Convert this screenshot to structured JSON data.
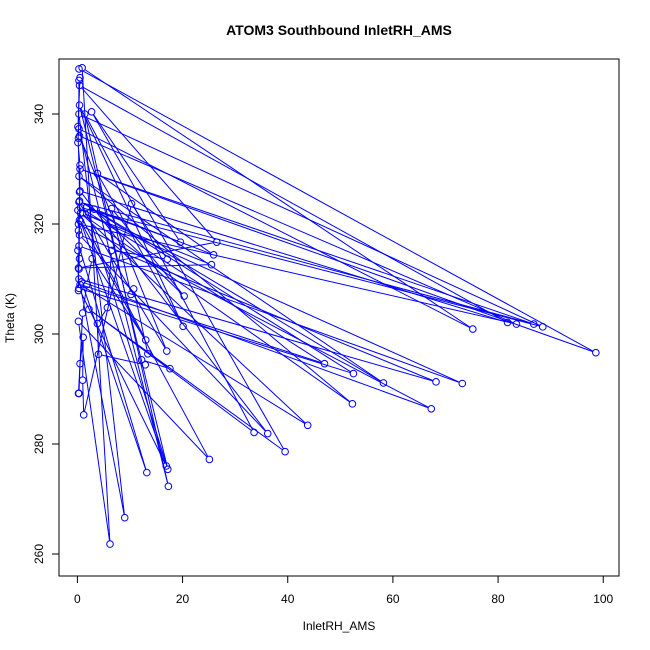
{
  "chart_data": {
    "type": "scatter",
    "title": "ATOM3 Southbound InletRH_AMS",
    "xlabel": "InletRH_AMS",
    "ylabel": "Theta (K)",
    "xlim": [
      -3.5,
      103
    ],
    "ylim": [
      256,
      350
    ],
    "xticks": [
      "0",
      "20",
      "40",
      "60",
      "80",
      "100"
    ],
    "yticks": [
      "260",
      "280",
      "300",
      "320",
      "340"
    ],
    "series": [
      {
        "color": "#0000ff",
        "marker": "open-circle",
        "connected": true,
        "points": [
          [
            0.3,
            348.2
          ],
          [
            98.6,
            296.6
          ],
          [
            0.5,
            330.0
          ],
          [
            86.8,
            301.8
          ],
          [
            0.3,
            324.0
          ],
          [
            17.0,
            296.9
          ],
          [
            0.4,
            336.0
          ],
          [
            83.5,
            301.8
          ],
          [
            0.2,
            320.0
          ],
          [
            67.3,
            286.4
          ],
          [
            0.8,
            309.5
          ],
          [
            13.2,
            274.8
          ],
          [
            0.3,
            316.0
          ],
          [
            73.2,
            291.0
          ],
          [
            1.0,
            322.0
          ],
          [
            25.5,
            312.6
          ],
          [
            0.2,
            312.0
          ],
          [
            26.5,
            316.7
          ],
          [
            0.4,
            345.2
          ],
          [
            81.8,
            302.1
          ],
          [
            0.5,
            326.0
          ],
          [
            36.2,
            281.9
          ],
          [
            0.4,
            318.0
          ],
          [
            68.2,
            291.3
          ],
          [
            0.3,
            310.0
          ],
          [
            9.0,
            266.6
          ],
          [
            0.3,
            340.0
          ],
          [
            88.5,
            301.3
          ],
          [
            0.6,
            323.0
          ],
          [
            47.0,
            294.6
          ],
          [
            0.5,
            309.0
          ],
          [
            43.8,
            283.4
          ],
          [
            0.6,
            322.0
          ],
          [
            52.3,
            287.3
          ],
          [
            0.3,
            328.7
          ],
          [
            58.2,
            291.1
          ],
          [
            0.4,
            324.2
          ],
          [
            52.5,
            292.8
          ],
          [
            0.3,
            308.3
          ],
          [
            16.9,
            276.0
          ],
          [
            0.6,
            320.5
          ],
          [
            25.1,
            277.2
          ],
          [
            0.2,
            302.3
          ],
          [
            6.2,
            261.8
          ],
          [
            0.9,
            348.4
          ],
          [
            75.2,
            300.9
          ],
          [
            0.3,
            337.3
          ],
          [
            17.3,
            272.3
          ],
          [
            1.4,
            340.0
          ],
          [
            33.6,
            282.1
          ],
          [
            2.2,
            304.5
          ],
          [
            39.5,
            278.6
          ],
          [
            2.7,
            340.4
          ],
          [
            19.6,
            316.7
          ],
          [
            1.7,
            323.0
          ],
          [
            17.2,
            275.4
          ],
          [
            0.4,
            341.6
          ],
          [
            20.1,
            301.4
          ],
          [
            3.8,
            329.2
          ],
          [
            25.9,
            314.4
          ],
          [
            3.2,
            322.7
          ],
          [
            20.3,
            306.9
          ],
          [
            6.5,
            322.8
          ],
          [
            10.2,
            307.2
          ],
          [
            10.7,
            308.2
          ],
          [
            13.4,
            296.4
          ],
          [
            17.6,
            293.7
          ],
          [
            12.2,
            295.3
          ],
          [
            12.9,
            294.4
          ],
          [
            4.0,
            296.3
          ],
          [
            3.8,
            301.9
          ],
          [
            5.7,
            304.8
          ],
          [
            6.5,
            315.2
          ],
          [
            17.1,
            313.6
          ],
          [
            10.3,
            323.7
          ],
          [
            1.2,
            285.3
          ],
          [
            1.0,
            291.6
          ],
          [
            1.1,
            299.4
          ],
          [
            0.5,
            294.6
          ],
          [
            0.3,
            289.2
          ],
          [
            0.2,
            289.2
          ],
          [
            1.0,
            303.8
          ],
          [
            1.8,
            309.0
          ],
          [
            2.8,
            313.7
          ],
          [
            13.0,
            298.9
          ],
          [
            0.1,
            322.5
          ],
          [
            0.2,
            318.8
          ],
          [
            0.4,
            313.7
          ],
          [
            0.3,
            311.8
          ],
          [
            0.4,
            320.7
          ],
          [
            0.5,
            330.7
          ],
          [
            0.1,
            334.8
          ],
          [
            0.2,
            335.6
          ],
          [
            0.3,
            346.1
          ],
          [
            0.5,
            346.6
          ],
          [
            0.1,
            337.7
          ],
          [
            0.4,
            325.8
          ],
          [
            0.2,
            307.9
          ],
          [
            0.1,
            315.2
          ]
        ]
      }
    ]
  }
}
